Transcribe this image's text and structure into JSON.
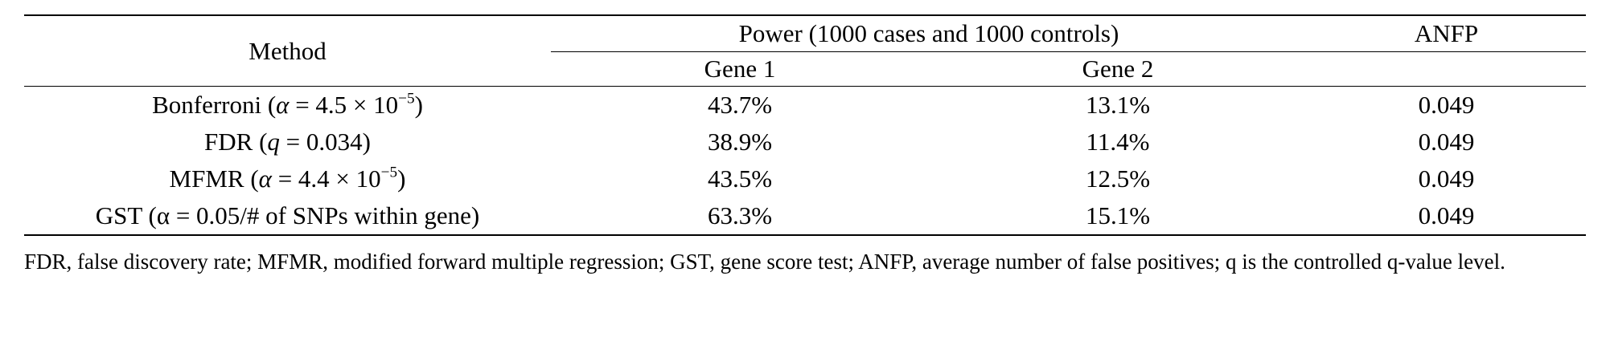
{
  "table": {
    "header": {
      "method": "Method",
      "power_group": "Power (1000 cases and 1000 controls)",
      "anfp": "ANFP",
      "gene1": "Gene 1",
      "gene2": "Gene 2"
    },
    "rows": [
      {
        "method_name": "Bonferroni (",
        "param_symbol": "α",
        "param_value": " = 4.5 × 10",
        "param_exp": "−5",
        "param_close": ")",
        "gene1": "43.7%",
        "gene2": "13.1%",
        "anfp": "0.049"
      },
      {
        "method_name": "FDR (",
        "param_symbol": "q",
        "param_value": " = 0.034)",
        "param_exp": "",
        "param_close": "",
        "gene1": "38.9%",
        "gene2": "11.4%",
        "anfp": "0.049"
      },
      {
        "method_name": "MFMR (",
        "param_symbol": "α",
        "param_value": " = 4.4 × 10",
        "param_exp": "−5",
        "param_close": ")",
        "gene1": "43.5%",
        "gene2": "12.5%",
        "anfp": "0.049"
      },
      {
        "method_name": "GST (α = 0.05/# of SNPs within gene)",
        "param_symbol": "",
        "param_value": "",
        "param_exp": "",
        "param_close": "",
        "gene1": "63.3%",
        "gene2": "15.1%",
        "anfp": "0.049"
      }
    ]
  },
  "footnote": "FDR, false discovery rate; MFMR, modified forward multiple regression; GST, gene score test; ANFP, average number of false positives; q is the controlled q-value level."
}
